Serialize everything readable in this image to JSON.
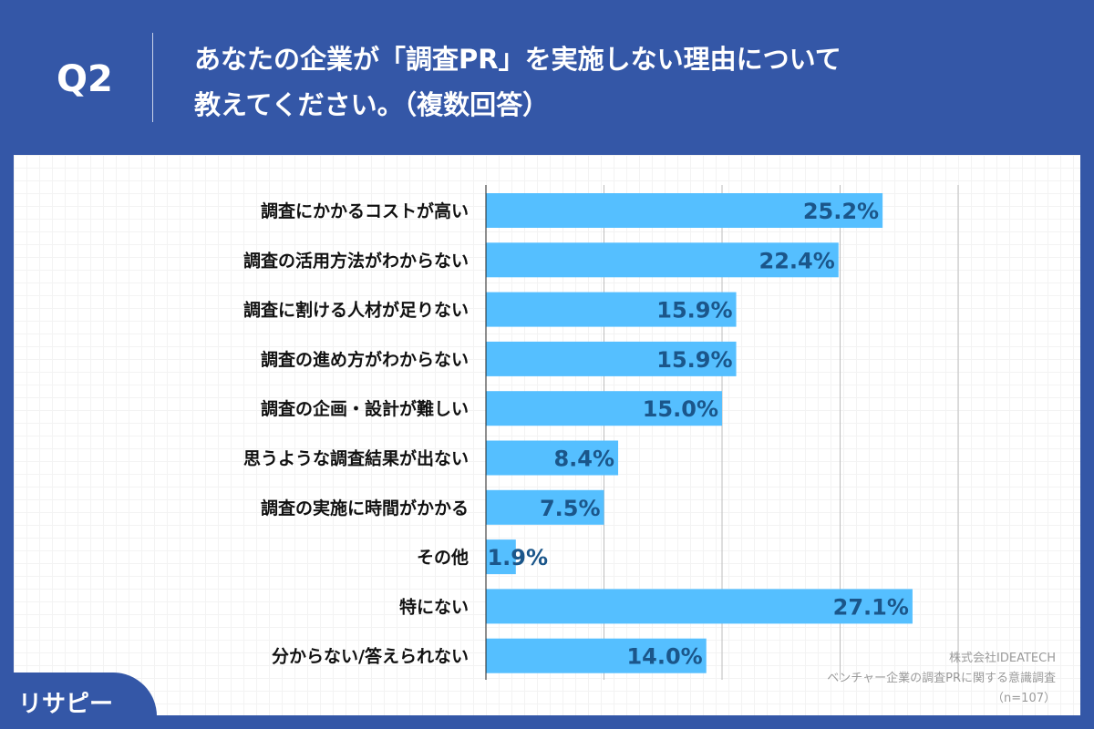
{
  "header": {
    "question_no": "Q2",
    "title_line1": "あなたの企業が「調査PR」を実施しない理由について",
    "title_line2": "教えてください。（複数回答）"
  },
  "source": {
    "company": "株式会社IDEATECH",
    "survey": "ベンチャー企業の調査PRに関する意識調査",
    "sample": "（n=107）"
  },
  "logo": {
    "text": "リサピー"
  },
  "colors": {
    "background": "#3457a7",
    "bar": "#55bfff",
    "value_text": "#1b568a"
  },
  "chart_data": {
    "type": "bar",
    "orientation": "horizontal",
    "categories": [
      "調査にかかるコストが高い",
      "調査の活用方法がわからない",
      "調査に割ける人材が足りない",
      "調査の進め方がわからない",
      "調査の企画・設計が難しい",
      "思うような調査結果が出ない",
      "調査の実施に時間がかかる",
      "その他",
      "特にない",
      "分からない/答えられない"
    ],
    "values": [
      25.2,
      22.4,
      15.9,
      15.9,
      15.0,
      8.4,
      7.5,
      1.9,
      27.1,
      14.0
    ],
    "value_labels": [
      "25.2%",
      "22.4%",
      "15.9%",
      "15.9%",
      "15.0%",
      "8.4%",
      "7.5%",
      "1.9%",
      "27.1%",
      "14.0%"
    ],
    "xlim": [
      0,
      30
    ],
    "gridlines": [
      7.5,
      15,
      22.5,
      30
    ],
    "grid": true
  }
}
